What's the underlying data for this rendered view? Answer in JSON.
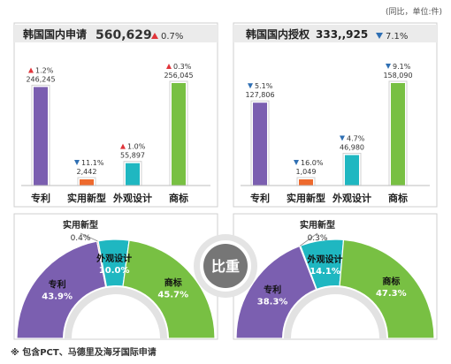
{
  "unit_note": "(同比，单位:件)",
  "footnote": "※ 包含PCT、马德里及海牙国际申请",
  "center_badge": "比重",
  "colors": {
    "patent": "#7b5fb0",
    "utility": "#ee6a2e",
    "design": "#1fb7c1",
    "trademark": "#78c043",
    "up_arrow": "#e0343a",
    "down_arrow": "#2f6fb3",
    "panel_bg": "#ebebeb",
    "ring_bg": "#e2e2e2",
    "badge": "#767676"
  },
  "chart_data": [
    {
      "type": "bar",
      "id": "applications",
      "title": "韩国国内申请",
      "total": "560,629",
      "total_change_dir": "up",
      "total_change": "0.7%",
      "categories": [
        "专利",
        "实用新型",
        "外观设计",
        "商标"
      ],
      "values": [
        246245,
        2442,
        55897,
        256045
      ],
      "value_labels": [
        "246,245",
        "2,442",
        "55,897",
        "256,045"
      ],
      "changes": [
        "1.2%",
        "11.1%",
        "1.0%",
        "0.3%"
      ],
      "change_dirs": [
        "up",
        "down",
        "up",
        "up"
      ]
    },
    {
      "type": "bar",
      "id": "grants",
      "title": "韩国国内授权",
      "total": "333,,925",
      "total_change_dir": "down",
      "total_change": "7.1%",
      "categories": [
        "专利",
        "实用新型",
        "外观设计",
        "商标"
      ],
      "values": [
        127806,
        1049,
        46980,
        158090
      ],
      "value_labels": [
        "127,806",
        "1,049",
        "46,980",
        "158,090"
      ],
      "changes": [
        "5.1%",
        "16.0%",
        "4.7%",
        "9.1%"
      ],
      "change_dirs": [
        "down",
        "down",
        "down",
        "down"
      ]
    },
    {
      "type": "pie",
      "id": "applications_share",
      "categories": [
        "专利",
        "实用新型",
        "外观设计",
        "商标"
      ],
      "values": [
        43.9,
        0.4,
        10.0,
        45.7
      ],
      "value_labels": [
        "43.9%",
        "0.4%",
        "10.0%",
        "45.7%"
      ]
    },
    {
      "type": "pie",
      "id": "grants_share",
      "categories": [
        "专利",
        "实用新型",
        "外观设计",
        "商标"
      ],
      "values": [
        38.3,
        0.3,
        14.1,
        47.3
      ],
      "value_labels": [
        "38.3%",
        "0.3%",
        "14.1%",
        "47.3%"
      ]
    }
  ]
}
